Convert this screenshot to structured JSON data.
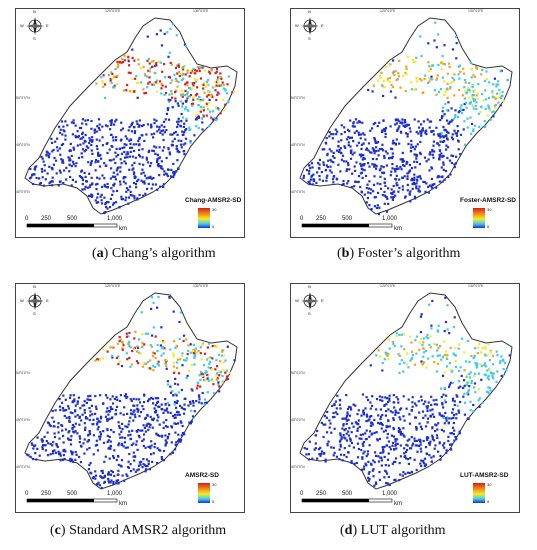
{
  "panels": [
    {
      "letter": "a",
      "caption_rest": " Chang’s algorithm",
      "legend_title": "Chang-AMSR2-SD"
    },
    {
      "letter": "b",
      "caption_rest": " Foster’s algorithm",
      "legend_title": "Foster-AMSR2-SD"
    },
    {
      "letter": "c",
      "caption_rest": " Standard AMSR2 algorithm",
      "legend_title": "AMSR2-SD"
    },
    {
      "letter": "d",
      "caption_rest": " LUT algorithm",
      "legend_title": "LUT-AMSR2-SD"
    }
  ],
  "legend": {
    "max": "30",
    "min": "5"
  },
  "scalebar": {
    "labels": [
      "0",
      "250",
      "500",
      "1,000"
    ],
    "unit": "km"
  },
  "compass": {
    "n": "N",
    "s": "S",
    "e": "E",
    "w": "W"
  },
  "ticks": {
    "top": [
      "120°0'0\"E",
      "130°0'0\"E"
    ],
    "left": [
      "50°0'0\"N",
      "45°0'0\"N",
      "40°0'0\"N"
    ]
  },
  "colors": {
    "high": "#d81e1e",
    "mid_high": "#f5a214",
    "mid": "#f2ec2a",
    "mid_low": "#3ec9ef",
    "low": "#1d2fd0",
    "outline": "#333333"
  },
  "intensity": {
    "a": 1.0,
    "b": 0.55,
    "c": 0.75,
    "d": 0.45
  }
}
